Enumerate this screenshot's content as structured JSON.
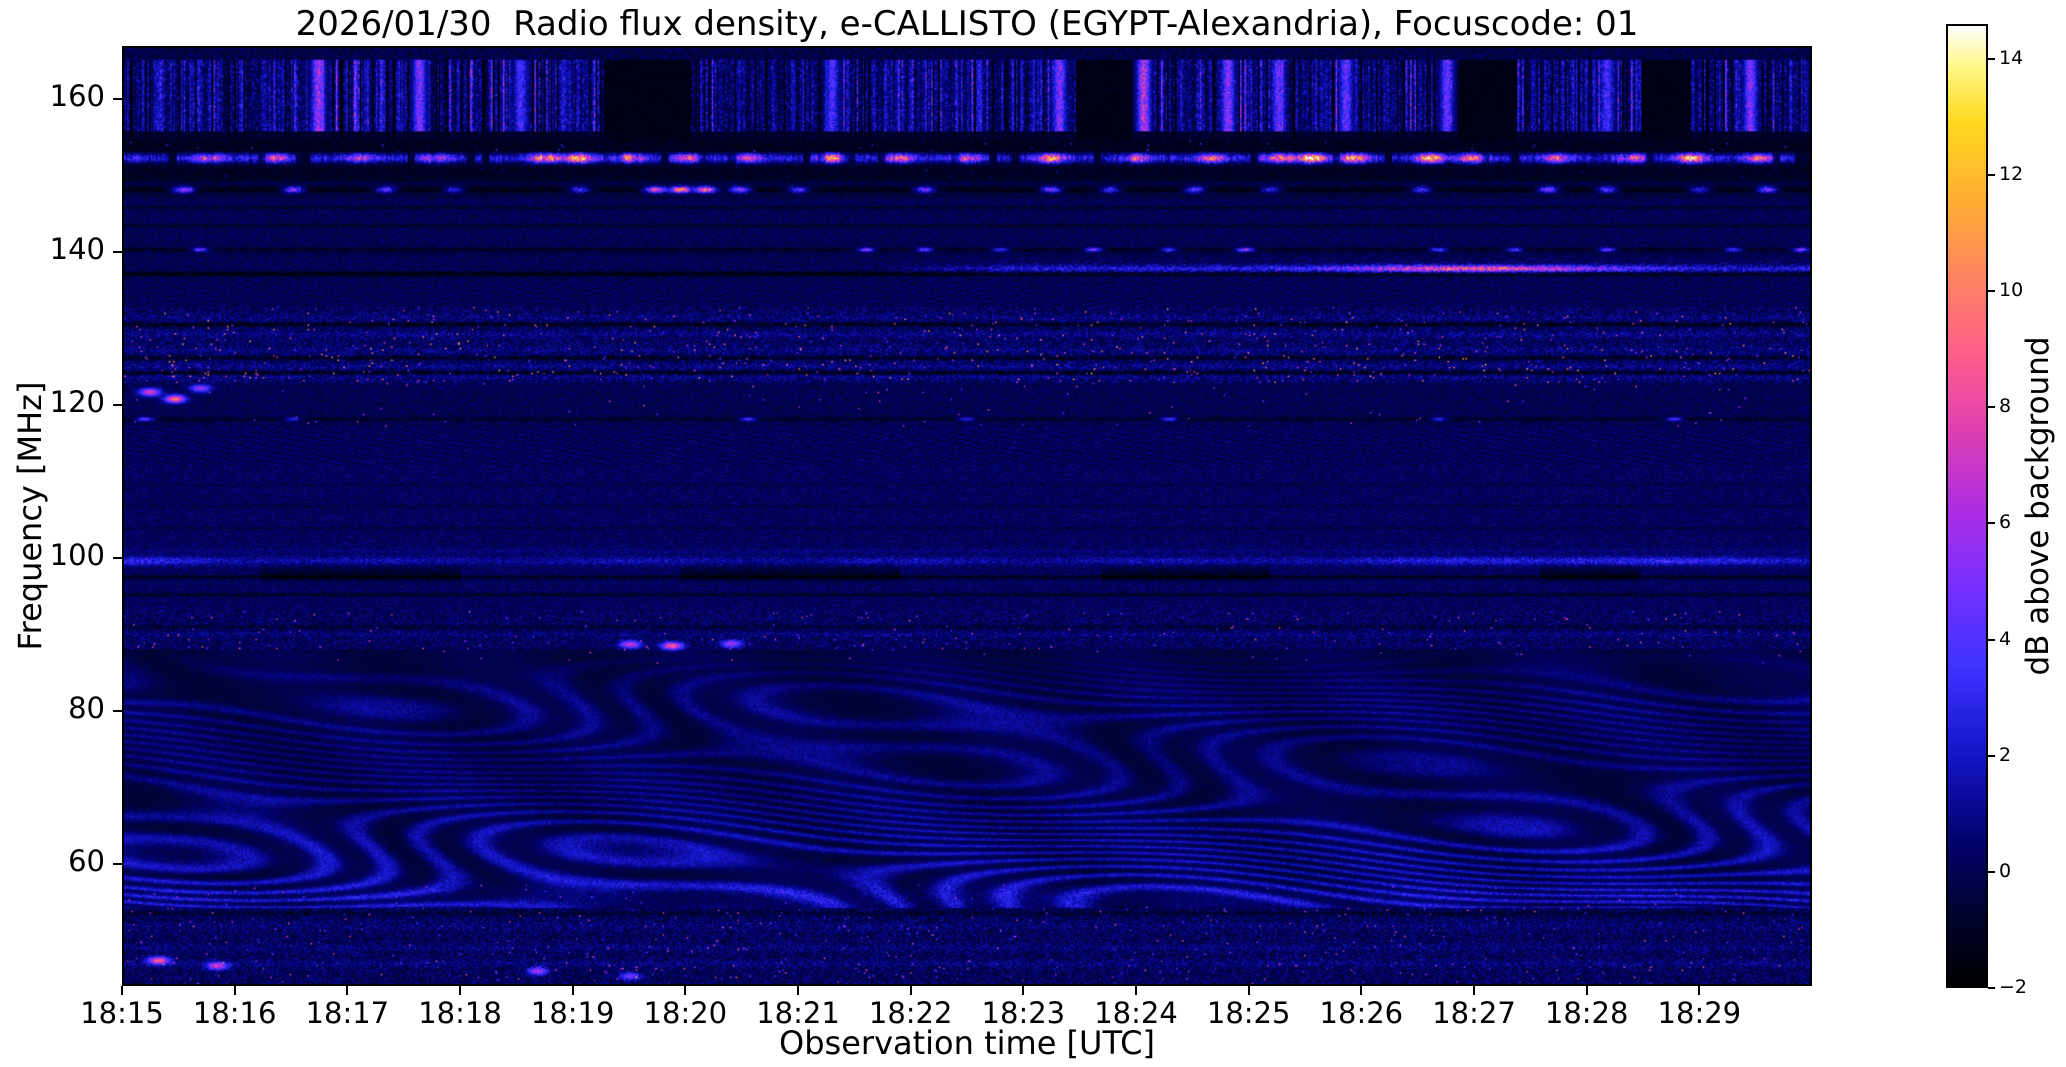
{
  "figure": {
    "background": "#ffffff",
    "text_color": "#000000"
  },
  "chart_data": {
    "type": "heatmap",
    "title": "2026/01/30  Radio flux density, e-CALLISTO (EGYPT-Alexandria), Focuscode: 01",
    "xlabel": "Observation time [UTC]",
    "ylabel": "Frequency [MHz]",
    "x_ticks": [
      "18:15",
      "18:16",
      "18:17",
      "18:18",
      "18:19",
      "18:20",
      "18:21",
      "18:22",
      "18:23",
      "18:24",
      "18:25",
      "18:26",
      "18:27",
      "18:28",
      "18:29"
    ],
    "x_total_minutes": 15,
    "y_ticks": [
      60,
      80,
      100,
      120,
      140,
      160
    ],
    "freq_range": [
      44,
      167
    ],
    "grid": false,
    "colorbar": {
      "label": "dB above background",
      "ticks": [
        -2,
        0,
        2,
        4,
        6,
        8,
        10,
        12,
        14
      ],
      "vmin": -2,
      "vmax": 14.6,
      "stops": [
        [
          0,
          "#000000"
        ],
        [
          0.08,
          "#000233"
        ],
        [
          0.15,
          "#02026e"
        ],
        [
          0.24,
          "#1414c8"
        ],
        [
          0.33,
          "#3c32ff"
        ],
        [
          0.42,
          "#7a2fff"
        ],
        [
          0.5,
          "#b02de0"
        ],
        [
          0.58,
          "#e040b0"
        ],
        [
          0.66,
          "#ff5f8a"
        ],
        [
          0.74,
          "#ff8560"
        ],
        [
          0.82,
          "#ffae33"
        ],
        [
          0.9,
          "#ffd91e"
        ],
        [
          0.96,
          "#fff88c"
        ],
        [
          1,
          "#ffffff"
        ]
      ]
    },
    "features": {
      "wave_band": {
        "fmin": 54,
        "fmax": 88,
        "fringe_spacing_mhz": 2.2
      },
      "rfi_line_148": {
        "f": 148.45,
        "events": [
          [
            0.035,
            9
          ],
          [
            0.1,
            8
          ],
          [
            0.155,
            7
          ],
          [
            0.195,
            5
          ],
          [
            0.27,
            6
          ],
          [
            0.315,
            12
          ],
          [
            0.33,
            14
          ],
          [
            0.345,
            13
          ],
          [
            0.365,
            9
          ],
          [
            0.4,
            6
          ],
          [
            0.475,
            7
          ],
          [
            0.55,
            8
          ],
          [
            0.585,
            6
          ],
          [
            0.635,
            7
          ],
          [
            0.68,
            5
          ],
          [
            0.77,
            6
          ],
          [
            0.845,
            8
          ],
          [
            0.88,
            7
          ],
          [
            0.935,
            5
          ],
          [
            0.975,
            8
          ]
        ]
      },
      "rfi_line_152": {
        "f": 152.6,
        "events": [
          [
            0.05,
            8
          ],
          [
            0.09,
            7
          ],
          [
            0.14,
            6
          ],
          [
            0.185,
            7
          ],
          [
            0.25,
            12
          ],
          [
            0.27,
            13
          ],
          [
            0.3,
            10
          ],
          [
            0.335,
            8
          ],
          [
            0.37,
            7
          ],
          [
            0.42,
            11
          ],
          [
            0.46,
            8
          ],
          [
            0.5,
            7
          ],
          [
            0.55,
            12
          ],
          [
            0.6,
            8
          ],
          [
            0.645,
            9
          ],
          [
            0.685,
            14
          ],
          [
            0.705,
            15
          ],
          [
            0.73,
            12
          ],
          [
            0.775,
            13
          ],
          [
            0.8,
            10
          ],
          [
            0.85,
            8
          ],
          [
            0.895,
            9
          ],
          [
            0.93,
            13
          ],
          [
            0.97,
            9
          ]
        ]
      },
      "rfi_line_140": {
        "f": 140.55,
        "events": [
          [
            0.045,
            7
          ],
          [
            0.44,
            8
          ],
          [
            0.475,
            7
          ],
          [
            0.52,
            6
          ],
          [
            0.575,
            8
          ],
          [
            0.62,
            6
          ],
          [
            0.665,
            9
          ],
          [
            0.78,
            7
          ],
          [
            0.825,
            6
          ],
          [
            0.88,
            7
          ],
          [
            0.955,
            6
          ],
          [
            0.995,
            8
          ]
        ]
      },
      "rfi_line_118": {
        "f": 118.25,
        "events": [
          [
            0.012,
            6
          ],
          [
            0.1,
            4
          ],
          [
            0.37,
            5
          ],
          [
            0.5,
            4
          ],
          [
            0.62,
            5
          ],
          [
            0.78,
            4
          ],
          [
            0.92,
            5
          ]
        ]
      },
      "streak_138": {
        "f": 138.05,
        "start": 0.43,
        "peak": 0.8,
        "peak_amp": 8,
        "sustain": 2.6
      },
      "line_99": {
        "f": 99.6,
        "left_boost": 2.0,
        "right_boost": 1.8
      },
      "dark_smudges": [
        [
          0.08,
          0.2
        ],
        [
          0.33,
          0.46
        ],
        [
          0.58,
          0.68
        ],
        [
          0.84,
          0.9
        ]
      ],
      "top_streaks": [
        [
          0.115,
          8
        ],
        [
          0.175,
          7
        ],
        [
          0.235,
          5
        ],
        [
          0.42,
          5
        ],
        [
          0.555,
          7
        ],
        [
          0.605,
          9
        ],
        [
          0.655,
          7
        ],
        [
          0.685,
          6
        ],
        [
          0.725,
          6
        ],
        [
          0.785,
          6
        ],
        [
          0.88,
          5
        ],
        [
          0.965,
          7
        ]
      ],
      "top_dark_blocks": [
        [
          0.285,
          0.335
        ],
        [
          0.565,
          0.605
        ],
        [
          0.79,
          0.825
        ],
        [
          0.9,
          0.93
        ]
      ],
      "spots": [
        [
          0.02,
          47,
          9
        ],
        [
          0.055,
          46.3,
          7
        ],
        [
          0.015,
          121.8,
          8
        ],
        [
          0.03,
          120.9,
          10
        ],
        [
          0.045,
          122.3,
          6
        ],
        [
          0.3,
          88.6,
          7
        ],
        [
          0.325,
          88.4,
          9
        ],
        [
          0.36,
          88.7,
          6
        ],
        [
          0.245,
          45.6,
          6
        ],
        [
          0.3,
          44.9,
          5
        ]
      ]
    }
  }
}
